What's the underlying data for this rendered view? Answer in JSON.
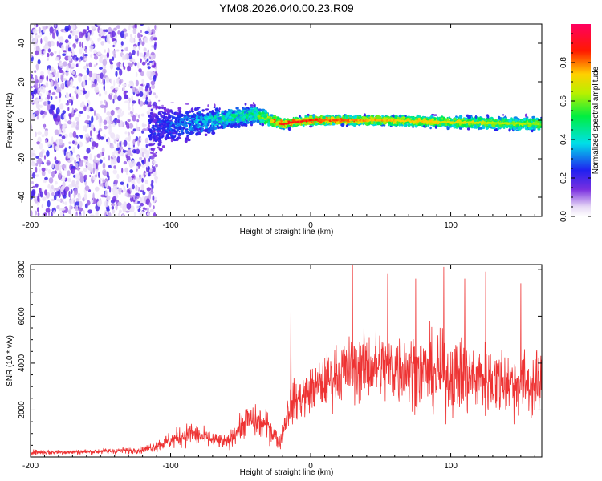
{
  "title": "YM08.2026.040.00.23.R09",
  "chart_data": [
    {
      "type": "heatmap",
      "title": "YM08.2026.040.00.23.R09",
      "xlabel": "Height of straight line (km)",
      "ylabel": "Frequency (Hz)",
      "xlim": [
        -200,
        165
      ],
      "ylim": [
        -50,
        50
      ],
      "x_ticks": [
        -200,
        -100,
        0,
        100
      ],
      "x_tick_labels": [
        "-200",
        "-100",
        "0",
        "100"
      ],
      "y_ticks": [
        -40,
        -20,
        0,
        20,
        40
      ],
      "y_tick_labels": [
        "-40",
        "-20",
        "0",
        "20",
        "40"
      ],
      "colorbar": {
        "label": "Normalized spectral amplitude",
        "range": [
          0,
          1
        ],
        "ticks": [
          0.0,
          0.2,
          0.4,
          0.6,
          0.8
        ],
        "tick_labels": [
          "0.0",
          "0.2",
          "0.4",
          "0.6",
          "0.8"
        ],
        "colormap": "rainbow (white-violet-blue-cyan-green-yellow-red-magenta)"
      },
      "description_points": [
        {
          "x": -200,
          "y_center": 0,
          "spread": 50,
          "amplitude": 0.15
        },
        {
          "x": -120,
          "y_center": -5,
          "spread": 15,
          "amplitude": 0.2
        },
        {
          "x": -100,
          "y_center": -3,
          "spread": 8,
          "amplitude": 0.3
        },
        {
          "x": -60,
          "y_center": 1,
          "spread": 5,
          "amplitude": 0.45
        },
        {
          "x": -40,
          "y_center": 3,
          "spread": 4,
          "amplitude": 0.5
        },
        {
          "x": -20,
          "y_center": -2,
          "spread": 2,
          "amplitude": 0.9
        },
        {
          "x": 0,
          "y_center": 0,
          "spread": 2,
          "amplitude": 0.85
        },
        {
          "x": 50,
          "y_center": 0,
          "spread": 2,
          "amplitude": 0.75
        },
        {
          "x": 100,
          "y_center": -1,
          "spread": 2.5,
          "amplitude": 0.7
        },
        {
          "x": 165,
          "y_center": -2,
          "spread": 3,
          "amplitude": 0.6
        }
      ]
    },
    {
      "type": "line",
      "xlabel": "Height of straight line (km)",
      "ylabel": "SNR (10 * v/v)",
      "xlim": [
        -200,
        165
      ],
      "ylim": [
        0,
        8200
      ],
      "x_ticks": [
        -200,
        -100,
        0,
        100
      ],
      "x_tick_labels": [
        "-200",
        "-100",
        "0",
        "100"
      ],
      "y_ticks": [
        2000,
        4000,
        6000,
        8000
      ],
      "y_tick_labels": [
        "2000",
        "4000",
        "6000",
        "8000"
      ],
      "series": [
        {
          "name": "SNR",
          "color": "#ee3333",
          "envelope_points": [
            {
              "x": -200,
              "mean": 200,
              "amp": 150
            },
            {
              "x": -160,
              "mean": 220,
              "amp": 150
            },
            {
              "x": -120,
              "mean": 300,
              "amp": 200
            },
            {
              "x": -100,
              "mean": 700,
              "amp": 500
            },
            {
              "x": -85,
              "mean": 1000,
              "amp": 700
            },
            {
              "x": -75,
              "mean": 800,
              "amp": 500
            },
            {
              "x": -60,
              "mean": 600,
              "amp": 400
            },
            {
              "x": -45,
              "mean": 1600,
              "amp": 900
            },
            {
              "x": -30,
              "mean": 1300,
              "amp": 900
            },
            {
              "x": -22,
              "mean": 600,
              "amp": 400
            },
            {
              "x": -15,
              "mean": 2200,
              "amp": 1200
            },
            {
              "x": 0,
              "mean": 2800,
              "amp": 1300
            },
            {
              "x": 20,
              "mean": 3600,
              "amp": 1800
            },
            {
              "x": 40,
              "mean": 3900,
              "amp": 2000
            },
            {
              "x": 60,
              "mean": 3800,
              "amp": 2200
            },
            {
              "x": 100,
              "mean": 3500,
              "amp": 2200
            },
            {
              "x": 140,
              "mean": 3200,
              "amp": 2000
            },
            {
              "x": 165,
              "mean": 3000,
              "amp": 1900
            }
          ],
          "spikes": [
            {
              "x": -14,
              "y": 6200
            },
            {
              "x": 30,
              "y": 8200
            },
            {
              "x": 55,
              "y": 7800
            },
            {
              "x": 75,
              "y": 7600
            },
            {
              "x": 95,
              "y": 8100
            },
            {
              "x": 110,
              "y": 7600
            },
            {
              "x": 125,
              "y": 7900
            },
            {
              "x": 150,
              "y": 7400
            }
          ]
        }
      ]
    }
  ]
}
